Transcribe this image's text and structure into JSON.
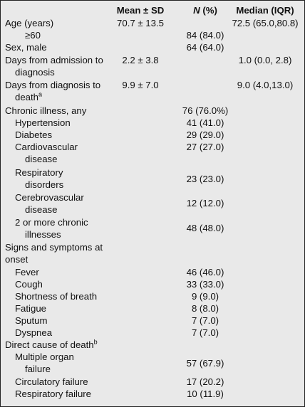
{
  "headers": {
    "mean_sd": "Mean ± SD",
    "n_pct_italic": "N",
    "n_pct_rest": " (%)",
    "median_iqr": "Median (IQR)"
  },
  "rows": {
    "age": {
      "label": "Age (years)",
      "mean": "70.7 ± 13.5",
      "median": "72.5 (65.0,80.8)"
    },
    "ge60": {
      "label": "≥60",
      "n": "84 (84.0)"
    },
    "sex": {
      "label": "Sex, male",
      "n": "64 (64.0)"
    },
    "days_adm": {
      "label1": "Days from admission to",
      "label2": "diagnosis",
      "mean": "2.2 ± 3.8",
      "median": "1.0 (0.0, 2.8)"
    },
    "days_death": {
      "label1": "Days from diagnosis to",
      "label2": "death",
      "sup": "a",
      "mean": "9.9 ± 7.0",
      "median": "9.0 (4.0,13.0)"
    },
    "chronic": {
      "label": "Chronic illness, any",
      "n": "76 (76.0%)"
    },
    "hypertension": {
      "label": "Hypertension",
      "n": "41 (41.0)"
    },
    "diabetes": {
      "label": "Diabetes",
      "n": "29 (29.0)"
    },
    "cardio": {
      "label1": "Cardiovascular",
      "label2": "disease",
      "n": "27 (27.0)"
    },
    "resp": {
      "label1": "Respiratory",
      "label2": "disorders",
      "n": "23 (23.0)"
    },
    "cerebro": {
      "label1": "Cerebrovascular",
      "label2": "disease",
      "n": "12 (12.0)"
    },
    "multi": {
      "label1": "2 or more chronic",
      "label2": "illnesses",
      "n": "48 (48.0)"
    },
    "signs": {
      "label1": "Signs and symptoms at",
      "label2": "onset"
    },
    "fever": {
      "label": "Fever",
      "n": "46 (46.0)"
    },
    "cough": {
      "label": "Cough",
      "n": "33 (33.0)"
    },
    "sob": {
      "label": "Shortness of breath",
      "n": "9 (9.0)"
    },
    "fatigue": {
      "label": "Fatigue",
      "n": "8 (8.0)"
    },
    "sputum": {
      "label": "Sputum",
      "n": "7 (7.0)"
    },
    "dyspnea": {
      "label": "Dyspnea",
      "n": "7 (7.0)"
    },
    "direct": {
      "label": "Direct cause of death",
      "sup": "b"
    },
    "mof": {
      "label1": "Multiple organ",
      "label2": "failure",
      "n": "57 (67.9)"
    },
    "circ": {
      "label": "Circulatory failure",
      "n": "17 (20.2)"
    },
    "respf": {
      "label": "Respiratory failure",
      "n": "10 (11.9)"
    }
  }
}
